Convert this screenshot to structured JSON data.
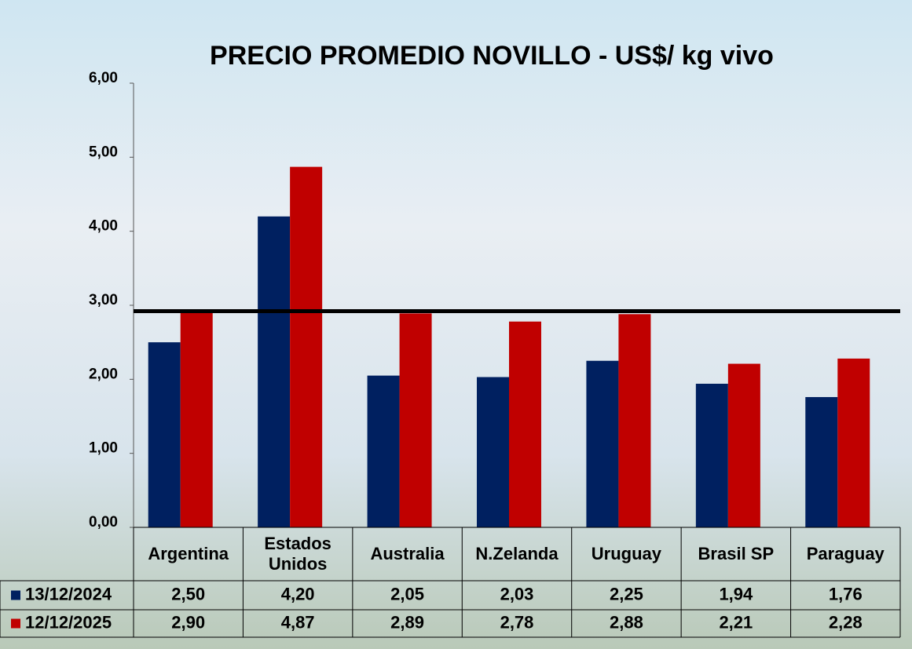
{
  "chart_data": {
    "type": "bar",
    "title": "PRECIO PROMEDIO NOVILLO  - US$/ kg vivo",
    "categories": [
      "Argentina",
      "Estados Unidos",
      "Australia",
      "N.Zelanda",
      "Uruguay",
      "Brasil SP",
      "Paraguay"
    ],
    "series": [
      {
        "name": "13/12/2024",
        "color": "#002060",
        "values": [
          2.5,
          4.2,
          2.05,
          2.03,
          2.25,
          1.94,
          1.76
        ],
        "value_labels": [
          "2,50",
          "4,20",
          "2,05",
          "2,03",
          "2,25",
          "1,94",
          "1,76"
        ]
      },
      {
        "name": "12/12/2025",
        "color": "#c00000",
        "values": [
          2.9,
          4.87,
          2.89,
          2.78,
          2.88,
          2.21,
          2.28
        ],
        "value_labels": [
          "2,90",
          "4,87",
          "2,89",
          "2,78",
          "2,88",
          "2,21",
          "2,28"
        ]
      }
    ],
    "ylim": [
      0,
      6
    ],
    "yticks": [
      {
        "value": 0,
        "label": "0,00"
      },
      {
        "value": 1,
        "label": "1,00"
      },
      {
        "value": 2,
        "label": "2,00"
      },
      {
        "value": 3,
        "label": "3,00"
      },
      {
        "value": 4,
        "label": "4,00"
      },
      {
        "value": 5,
        "label": "5,00"
      },
      {
        "value": 6,
        "label": "6,00"
      }
    ],
    "reference_line": 2.92
  }
}
